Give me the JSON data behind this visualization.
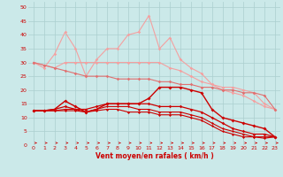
{
  "x": [
    0,
    1,
    2,
    3,
    4,
    5,
    6,
    7,
    8,
    9,
    10,
    11,
    12,
    13,
    14,
    15,
    16,
    17,
    18,
    19,
    20,
    21,
    22,
    23
  ],
  "series": [
    {
      "name": "light_pink_jagged",
      "color": "#F4A0A0",
      "lw": 0.8,
      "marker": "D",
      "ms": 1.8,
      "data": [
        30,
        28,
        33,
        41,
        35,
        25,
        31,
        35,
        35,
        40,
        41,
        47,
        35,
        39,
        31,
        28,
        26,
        22,
        20,
        19,
        18,
        16,
        14,
        13
      ]
    },
    {
      "name": "light_pink_smooth",
      "color": "#F4A0A0",
      "lw": 0.8,
      "marker": "D",
      "ms": 1.8,
      "data": [
        30,
        29,
        28,
        30,
        30,
        30,
        30,
        30,
        30,
        30,
        30,
        30,
        30,
        28,
        27,
        25,
        23,
        22,
        21,
        21,
        20,
        19,
        15,
        13
      ]
    },
    {
      "name": "medium_pink_diagonal",
      "color": "#E07070",
      "lw": 0.8,
      "marker": "D",
      "ms": 1.8,
      "data": [
        30,
        29,
        28,
        27,
        26,
        25,
        25,
        25,
        24,
        24,
        24,
        24,
        23,
        23,
        22,
        22,
        21,
        21,
        20,
        20,
        19,
        19,
        18,
        13
      ]
    },
    {
      "name": "dark_red_main",
      "color": "#CC0000",
      "lw": 1.0,
      "marker": "D",
      "ms": 2.0,
      "data": [
        12.5,
        12.5,
        13,
        16,
        14,
        12,
        13,
        15,
        15,
        15,
        15,
        17,
        21,
        21,
        21,
        20,
        19,
        13,
        10,
        9,
        8,
        7,
        6,
        3
      ]
    },
    {
      "name": "dark_red_line2",
      "color": "#CC0000",
      "lw": 0.9,
      "marker": "D",
      "ms": 1.8,
      "data": [
        12.5,
        12.5,
        13,
        14,
        13,
        13,
        14,
        15,
        15,
        15,
        15,
        15,
        14,
        14,
        14,
        13,
        12,
        10,
        8,
        6,
        5,
        4,
        4,
        3
      ]
    },
    {
      "name": "dark_red_line3",
      "color": "#CC0000",
      "lw": 0.8,
      "marker": "D",
      "ms": 1.5,
      "data": [
        12.5,
        12.5,
        12.5,
        13,
        13,
        12,
        13,
        14,
        14,
        14,
        13,
        13,
        12,
        12,
        12,
        11,
        10,
        8,
        6,
        5,
        4,
        3,
        3,
        3
      ]
    },
    {
      "name": "dark_red_line4",
      "color": "#CC0000",
      "lw": 0.8,
      "marker": "D",
      "ms": 1.5,
      "data": [
        12.5,
        12.5,
        12.5,
        12.5,
        12.5,
        12,
        12.5,
        13,
        13,
        12,
        12,
        12,
        11,
        11,
        11,
        10,
        9,
        7,
        5,
        4,
        3,
        3,
        2.5,
        3
      ]
    }
  ],
  "bg_color": "#CBE9E9",
  "grid_color": "#AACFCF",
  "xlabel": "Vent moyen/en rafales ( km/h )",
  "xlabel_color": "#CC0000",
  "tick_color": "#CC0000",
  "ylim": [
    0,
    52
  ],
  "xlim": [
    -0.5,
    23.5
  ],
  "yticks": [
    0,
    5,
    10,
    15,
    20,
    25,
    30,
    35,
    40,
    45,
    50
  ],
  "xticks": [
    0,
    1,
    2,
    3,
    4,
    5,
    6,
    7,
    8,
    9,
    10,
    11,
    12,
    13,
    14,
    15,
    16,
    17,
    18,
    19,
    20,
    21,
    22,
    23
  ]
}
